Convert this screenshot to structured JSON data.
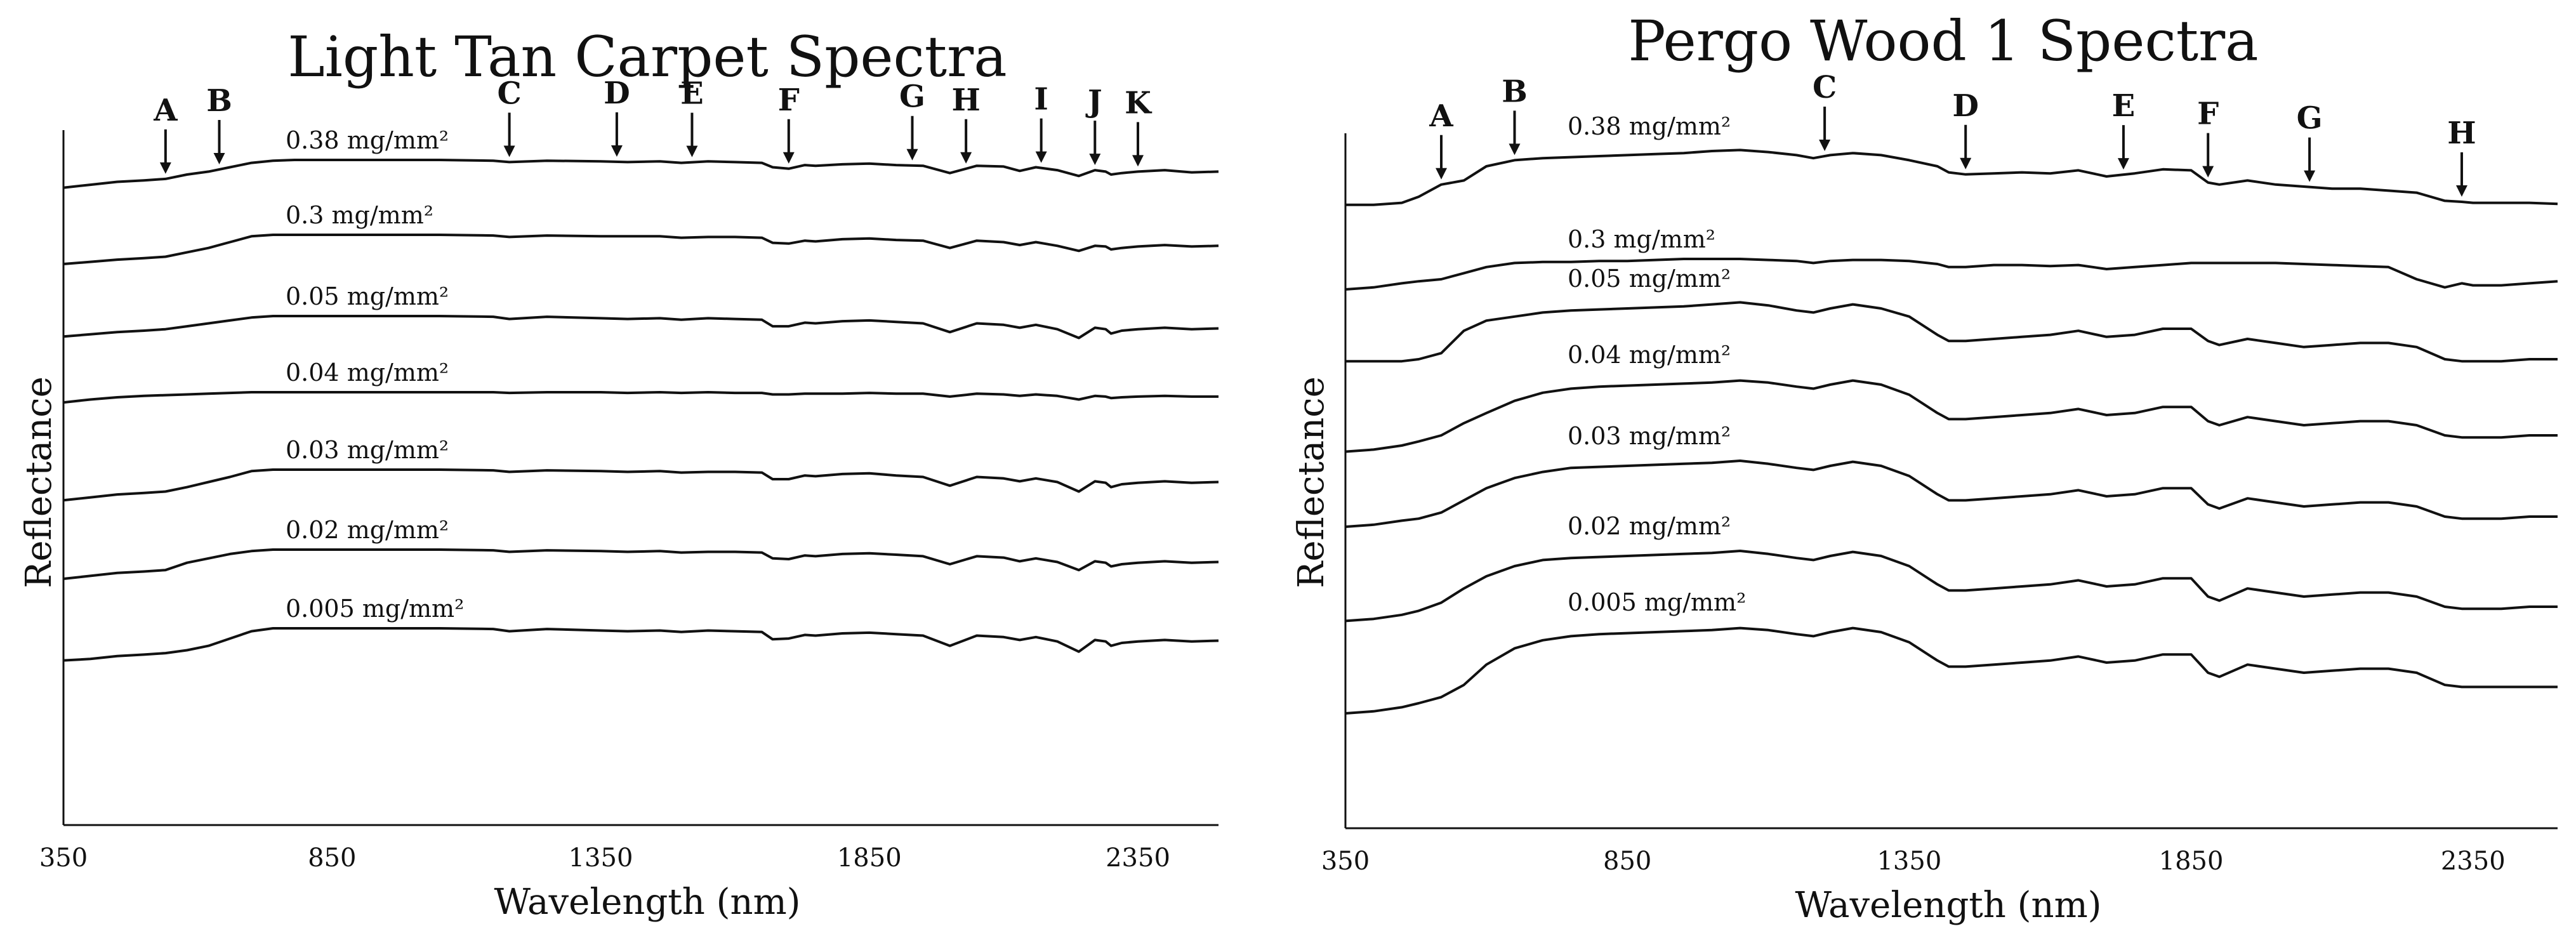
{
  "chart_data": [
    {
      "type": "line",
      "title": "Light Tan Carpet Spectra",
      "xlabel": "Wavelength (nm)",
      "ylabel": "Reflectance",
      "xlim": [
        350,
        2500
      ],
      "xticks": [
        350,
        850,
        1350,
        1850,
        2350
      ],
      "x": [
        350,
        400,
        450,
        500,
        540,
        580,
        620,
        660,
        700,
        740,
        780,
        850,
        950,
        1050,
        1150,
        1180,
        1250,
        1350,
        1400,
        1460,
        1500,
        1550,
        1600,
        1650,
        1670,
        1700,
        1730,
        1750,
        1800,
        1850,
        1900,
        1950,
        2000,
        2050,
        2100,
        2130,
        2160,
        2200,
        2240,
        2270,
        2290,
        2300,
        2320,
        2350,
        2400,
        2450,
        2500
      ],
      "series": [
        {
          "name": "0.38 mg/mm²",
          "values": [
            0.62,
            0.66,
            0.7,
            0.72,
            0.74,
            0.8,
            0.84,
            0.9,
            0.96,
            0.99,
            1.0,
            1.0,
            1.0,
            1.0,
            0.99,
            0.97,
            0.99,
            0.98,
            0.97,
            0.98,
            0.96,
            0.98,
            0.97,
            0.96,
            0.9,
            0.88,
            0.93,
            0.92,
            0.94,
            0.95,
            0.93,
            0.92,
            0.82,
            0.92,
            0.91,
            0.85,
            0.9,
            0.86,
            0.78,
            0.86,
            0.84,
            0.8,
            0.82,
            0.84,
            0.86,
            0.83,
            0.84
          ]
        },
        {
          "name": "0.3 mg/mm²",
          "values": [
            0.6,
            0.63,
            0.66,
            0.68,
            0.7,
            0.76,
            0.82,
            0.9,
            0.98,
            1.0,
            1.0,
            1.0,
            1.0,
            1.0,
            0.99,
            0.97,
            0.99,
            0.98,
            0.98,
            0.98,
            0.96,
            0.97,
            0.97,
            0.96,
            0.89,
            0.88,
            0.92,
            0.91,
            0.94,
            0.95,
            0.93,
            0.92,
            0.82,
            0.92,
            0.9,
            0.86,
            0.9,
            0.85,
            0.78,
            0.85,
            0.84,
            0.8,
            0.82,
            0.84,
            0.86,
            0.84,
            0.85
          ]
        },
        {
          "name": "0.05 mg/mm²",
          "values": [
            0.72,
            0.75,
            0.78,
            0.8,
            0.82,
            0.86,
            0.9,
            0.94,
            0.98,
            1.0,
            1.0,
            1.0,
            1.0,
            1.0,
            0.99,
            0.96,
            0.99,
            0.97,
            0.96,
            0.97,
            0.95,
            0.97,
            0.96,
            0.95,
            0.86,
            0.86,
            0.91,
            0.9,
            0.93,
            0.94,
            0.92,
            0.9,
            0.78,
            0.9,
            0.88,
            0.84,
            0.88,
            0.82,
            0.7,
            0.84,
            0.82,
            0.76,
            0.8,
            0.82,
            0.84,
            0.82,
            0.83
          ]
        },
        {
          "name": "0.04 mg/mm²",
          "values": [
            0.86,
            0.9,
            0.93,
            0.95,
            0.96,
            0.97,
            0.98,
            0.99,
            1.0,
            1.0,
            1.0,
            1.0,
            1.0,
            1.0,
            1.0,
            0.99,
            1.0,
            1.0,
            0.99,
            1.0,
            0.99,
            1.0,
            0.99,
            0.99,
            0.97,
            0.97,
            0.98,
            0.98,
            0.98,
            0.99,
            0.98,
            0.98,
            0.94,
            0.98,
            0.97,
            0.95,
            0.97,
            0.95,
            0.9,
            0.95,
            0.94,
            0.92,
            0.93,
            0.94,
            0.95,
            0.94,
            0.94
          ]
        },
        {
          "name": "0.03 mg/mm²",
          "values": [
            0.58,
            0.62,
            0.66,
            0.68,
            0.7,
            0.76,
            0.83,
            0.9,
            0.98,
            1.0,
            1.0,
            1.0,
            1.0,
            1.0,
            0.99,
            0.97,
            0.99,
            0.98,
            0.97,
            0.98,
            0.96,
            0.97,
            0.97,
            0.96,
            0.87,
            0.87,
            0.92,
            0.91,
            0.94,
            0.95,
            0.92,
            0.9,
            0.78,
            0.9,
            0.88,
            0.84,
            0.88,
            0.83,
            0.7,
            0.84,
            0.82,
            0.76,
            0.8,
            0.82,
            0.84,
            0.82,
            0.83
          ]
        },
        {
          "name": "0.02 mg/mm²",
          "values": [
            0.6,
            0.64,
            0.68,
            0.7,
            0.72,
            0.82,
            0.88,
            0.94,
            0.98,
            1.0,
            1.0,
            1.0,
            1.0,
            1.0,
            0.99,
            0.97,
            0.99,
            0.98,
            0.97,
            0.98,
            0.96,
            0.97,
            0.97,
            0.96,
            0.88,
            0.87,
            0.92,
            0.91,
            0.94,
            0.95,
            0.93,
            0.91,
            0.8,
            0.91,
            0.89,
            0.84,
            0.88,
            0.83,
            0.72,
            0.84,
            0.82,
            0.77,
            0.8,
            0.82,
            0.84,
            0.82,
            0.83
          ]
        },
        {
          "name": "0.005 mg/mm²",
          "values": [
            0.56,
            0.58,
            0.62,
            0.64,
            0.66,
            0.7,
            0.76,
            0.86,
            0.96,
            1.0,
            1.0,
            1.0,
            1.0,
            1.0,
            0.99,
            0.96,
            0.99,
            0.97,
            0.96,
            0.97,
            0.95,
            0.97,
            0.96,
            0.95,
            0.85,
            0.86,
            0.91,
            0.9,
            0.93,
            0.94,
            0.92,
            0.9,
            0.76,
            0.9,
            0.88,
            0.84,
            0.88,
            0.82,
            0.68,
            0.84,
            0.82,
            0.76,
            0.8,
            0.82,
            0.84,
            0.82,
            0.83
          ]
        }
      ],
      "markers": [
        {
          "label": "A",
          "x": 540
        },
        {
          "label": "B",
          "x": 640
        },
        {
          "label": "C",
          "x": 1180
        },
        {
          "label": "D",
          "x": 1380
        },
        {
          "label": "E",
          "x": 1520
        },
        {
          "label": "F",
          "x": 1700
        },
        {
          "label": "G",
          "x": 1930
        },
        {
          "label": "H",
          "x": 2030
        },
        {
          "label": "I",
          "x": 2170
        },
        {
          "label": "J",
          "x": 2270
        },
        {
          "label": "K",
          "x": 2350
        }
      ]
    },
    {
      "type": "line",
      "title": "Pergo Wood 1 Spectra",
      "xlabel": "Wavelength (nm)",
      "ylabel": "Reflectance",
      "xlim": [
        350,
        2500
      ],
      "xticks": [
        350,
        850,
        1350,
        1850,
        2350
      ],
      "x": [
        350,
        400,
        450,
        480,
        520,
        560,
        600,
        650,
        700,
        750,
        800,
        850,
        900,
        950,
        1000,
        1050,
        1100,
        1150,
        1180,
        1210,
        1250,
        1300,
        1350,
        1400,
        1420,
        1450,
        1500,
        1550,
        1600,
        1650,
        1700,
        1750,
        1800,
        1850,
        1880,
        1900,
        1950,
        2000,
        2050,
        2100,
        2150,
        2200,
        2250,
        2300,
        2330,
        2350,
        2400,
        2450,
        2500
      ],
      "series": [
        {
          "name": "0.38 mg/mm²",
          "values": [
            0.42,
            0.42,
            0.44,
            0.5,
            0.62,
            0.66,
            0.8,
            0.86,
            0.88,
            0.89,
            0.9,
            0.91,
            0.92,
            0.93,
            0.95,
            0.96,
            0.94,
            0.91,
            0.88,
            0.91,
            0.93,
            0.91,
            0.86,
            0.8,
            0.74,
            0.72,
            0.73,
            0.74,
            0.73,
            0.76,
            0.7,
            0.73,
            0.77,
            0.76,
            0.64,
            0.62,
            0.66,
            0.62,
            0.6,
            0.58,
            0.58,
            0.56,
            0.54,
            0.46,
            0.45,
            0.44,
            0.44,
            0.44,
            0.43
          ]
        },
        {
          "name": "0.3 mg/mm²",
          "values": [
            0.7,
            0.72,
            0.76,
            0.78,
            0.8,
            0.86,
            0.92,
            0.96,
            0.97,
            0.97,
            0.98,
            0.98,
            0.99,
            1.0,
            1.0,
            1.0,
            0.99,
            0.98,
            0.96,
            0.98,
            0.99,
            0.99,
            0.98,
            0.95,
            0.92,
            0.92,
            0.94,
            0.94,
            0.93,
            0.94,
            0.9,
            0.92,
            0.94,
            0.96,
            0.96,
            0.96,
            0.96,
            0.96,
            0.95,
            0.94,
            0.93,
            0.92,
            0.8,
            0.72,
            0.76,
            0.74,
            0.74,
            0.76,
            0.78
          ]
        },
        {
          "name": "0.05 mg/mm²",
          "values": [
            0.38,
            0.38,
            0.38,
            0.4,
            0.46,
            0.68,
            0.78,
            0.82,
            0.86,
            0.88,
            0.89,
            0.9,
            0.91,
            0.92,
            0.94,
            0.96,
            0.93,
            0.88,
            0.86,
            0.9,
            0.94,
            0.9,
            0.82,
            0.64,
            0.58,
            0.58,
            0.6,
            0.62,
            0.64,
            0.68,
            0.62,
            0.64,
            0.7,
            0.7,
            0.58,
            0.54,
            0.6,
            0.56,
            0.52,
            0.54,
            0.56,
            0.56,
            0.52,
            0.4,
            0.38,
            0.38,
            0.38,
            0.4,
            0.4
          ]
        },
        {
          "name": "0.04 mg/mm²",
          "values": [
            0.24,
            0.26,
            0.3,
            0.34,
            0.4,
            0.52,
            0.62,
            0.74,
            0.82,
            0.86,
            0.88,
            0.89,
            0.9,
            0.91,
            0.92,
            0.94,
            0.92,
            0.88,
            0.86,
            0.9,
            0.94,
            0.9,
            0.8,
            0.62,
            0.56,
            0.56,
            0.58,
            0.6,
            0.62,
            0.66,
            0.6,
            0.62,
            0.68,
            0.68,
            0.54,
            0.5,
            0.58,
            0.54,
            0.5,
            0.52,
            0.54,
            0.54,
            0.5,
            0.4,
            0.38,
            0.38,
            0.38,
            0.4,
            0.4
          ]
        },
        {
          "name": "0.03 mg/mm²",
          "values": [
            0.3,
            0.32,
            0.36,
            0.38,
            0.44,
            0.56,
            0.68,
            0.78,
            0.84,
            0.88,
            0.89,
            0.9,
            0.91,
            0.92,
            0.93,
            0.95,
            0.92,
            0.88,
            0.86,
            0.9,
            0.94,
            0.9,
            0.8,
            0.62,
            0.56,
            0.56,
            0.58,
            0.6,
            0.62,
            0.66,
            0.6,
            0.62,
            0.68,
            0.68,
            0.52,
            0.48,
            0.58,
            0.54,
            0.5,
            0.52,
            0.54,
            0.54,
            0.5,
            0.4,
            0.38,
            0.38,
            0.38,
            0.4,
            0.4
          ]
        },
        {
          "name": "0.02 mg/mm²",
          "values": [
            0.26,
            0.28,
            0.32,
            0.36,
            0.44,
            0.58,
            0.7,
            0.8,
            0.86,
            0.88,
            0.89,
            0.9,
            0.91,
            0.92,
            0.93,
            0.95,
            0.92,
            0.88,
            0.86,
            0.9,
            0.94,
            0.9,
            0.8,
            0.62,
            0.56,
            0.56,
            0.58,
            0.6,
            0.62,
            0.66,
            0.6,
            0.62,
            0.68,
            0.68,
            0.5,
            0.46,
            0.58,
            0.54,
            0.5,
            0.52,
            0.54,
            0.54,
            0.5,
            0.4,
            0.38,
            0.38,
            0.38,
            0.4,
            0.4
          ]
        },
        {
          "name": "0.005 mg/mm²",
          "values": [
            0.1,
            0.12,
            0.16,
            0.2,
            0.26,
            0.38,
            0.58,
            0.74,
            0.82,
            0.86,
            0.88,
            0.89,
            0.9,
            0.91,
            0.92,
            0.94,
            0.92,
            0.88,
            0.86,
            0.9,
            0.94,
            0.9,
            0.8,
            0.62,
            0.56,
            0.56,
            0.58,
            0.6,
            0.62,
            0.66,
            0.6,
            0.62,
            0.68,
            0.68,
            0.5,
            0.46,
            0.58,
            0.54,
            0.5,
            0.52,
            0.54,
            0.54,
            0.5,
            0.38,
            0.36,
            0.36,
            0.36,
            0.36,
            0.36
          ]
        }
      ],
      "markers": [
        {
          "label": "A",
          "x": 520
        },
        {
          "label": "B",
          "x": 650
        },
        {
          "label": "C",
          "x": 1200
        },
        {
          "label": "D",
          "x": 1450
        },
        {
          "label": "E",
          "x": 1730
        },
        {
          "label": "F",
          "x": 1880
        },
        {
          "label": "G",
          "x": 2060
        },
        {
          "label": "H",
          "x": 2330
        }
      ]
    }
  ]
}
